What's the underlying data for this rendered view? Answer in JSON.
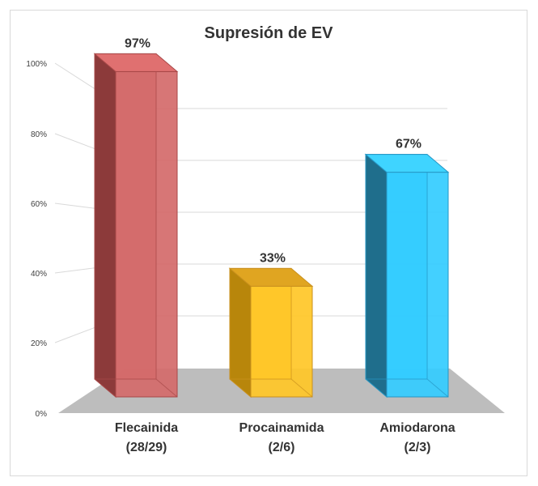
{
  "chart_data": {
    "type": "bar",
    "title": "Supresión de EV",
    "xlabel": "",
    "ylabel": "",
    "ylim": [
      0,
      100
    ],
    "y_ticks": [
      "0%",
      "20%",
      "40%",
      "60%",
      "80%",
      "100%"
    ],
    "categories": [
      {
        "line1": "Flecainida",
        "line2": "(28/29)"
      },
      {
        "line1": "Procainamida",
        "line2": "(2/6)"
      },
      {
        "line1": "Amiodarona",
        "line2": "(2/3)"
      }
    ],
    "values": [
      97,
      33,
      67
    ],
    "data_labels": [
      "97%",
      "33%",
      "67%"
    ],
    "colors": {
      "front": [
        "#d46a6a",
        "#ffc727",
        "#33ccff"
      ],
      "side": [
        "#8c3a3a",
        "#b8860b",
        "#1f6e8c"
      ],
      "top": [
        "#e07070",
        "#e0a521",
        "#3fd4ff"
      ],
      "edge": [
        "#a84848",
        "#c9901e",
        "#2596c4"
      ],
      "floor": "#bdbdbd",
      "grid": "#d9d9d9"
    },
    "style": "3d",
    "grid": true,
    "legend": "none"
  }
}
